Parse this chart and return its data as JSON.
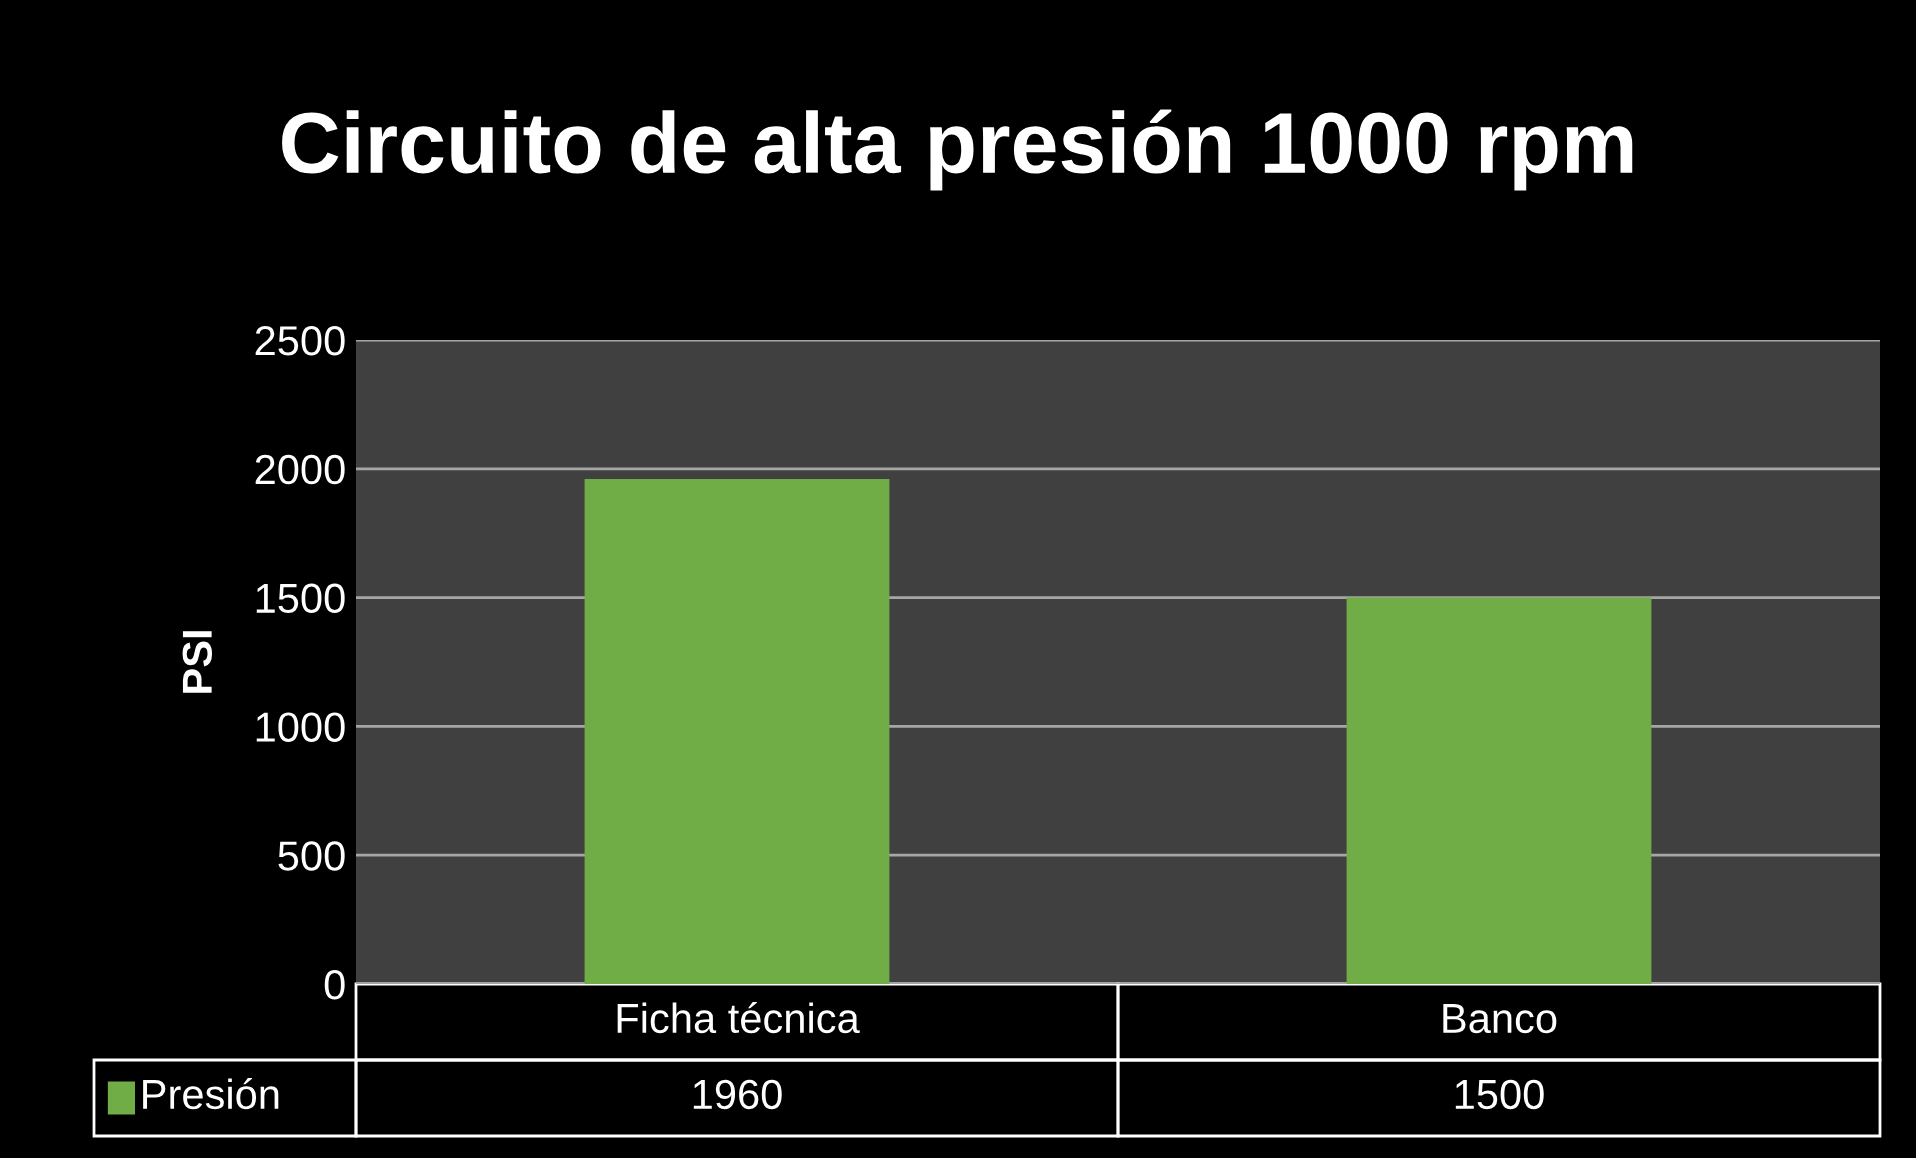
{
  "chart_data": {
    "type": "bar",
    "title": "Circuito de alta presión 1000 rpm",
    "ylabel": "PSI",
    "categories": [
      "Ficha técnica",
      "Banco"
    ],
    "series": [
      {
        "name": "Presión",
        "color": "#70ad47",
        "values": [
          1960,
          1500
        ]
      }
    ],
    "ylim": [
      0,
      2500
    ],
    "yticks": [
      0,
      500,
      1000,
      1500,
      2000,
      2500
    ],
    "grid": "y",
    "data_labels": true,
    "legend": "bottom"
  }
}
